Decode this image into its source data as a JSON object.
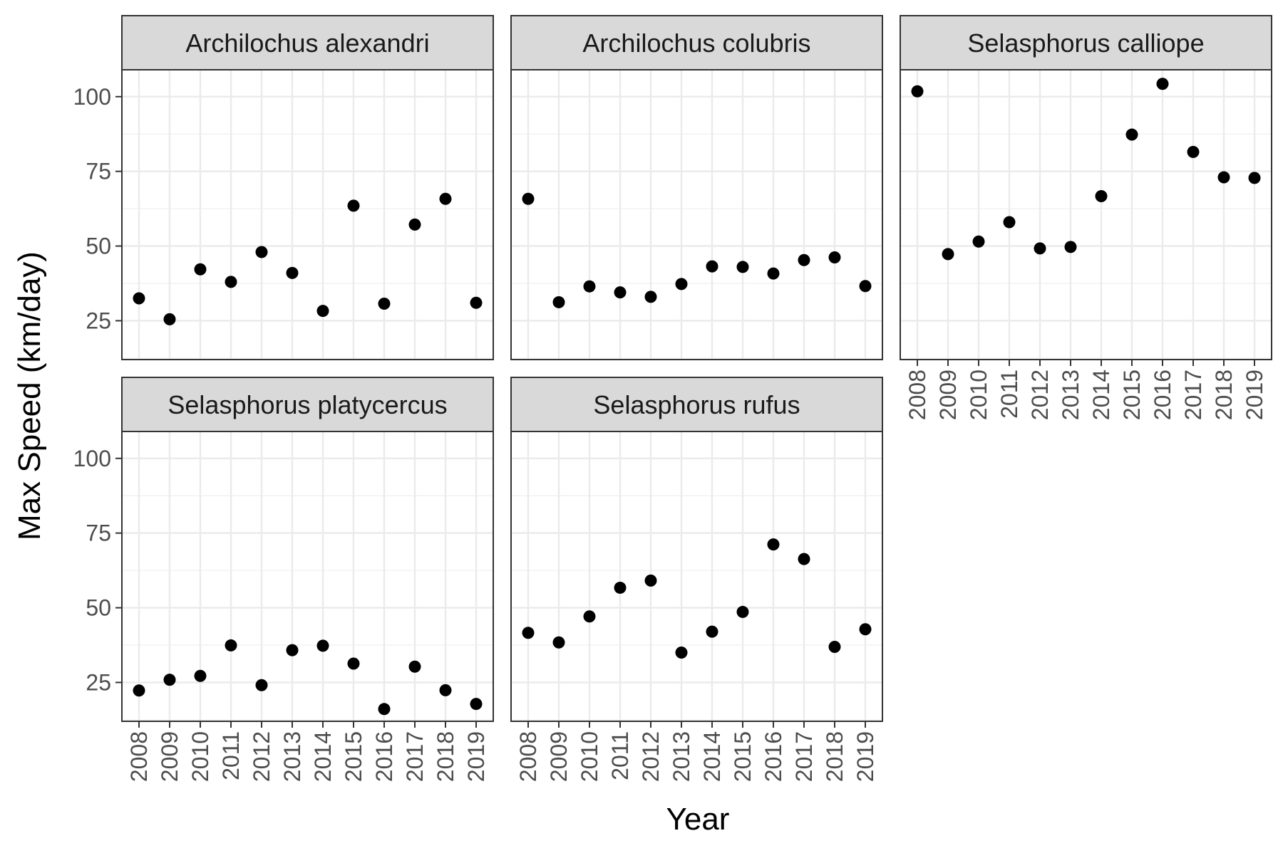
{
  "chart_data": {
    "type": "scatter",
    "facet_layout": "wrap",
    "xlabel": "Year",
    "ylabel": "Max Speed (km/day)",
    "x_categories": [
      "2008",
      "2009",
      "2010",
      "2011",
      "2012",
      "2013",
      "2014",
      "2015",
      "2016",
      "2017",
      "2018",
      "2019"
    ],
    "y_ticks": [
      25,
      50,
      75,
      100
    ],
    "ylim": [
      12,
      109
    ],
    "grid": true,
    "point_color": "#000000",
    "strip_fill": "#d9d9d9",
    "panels": [
      {
        "title": "Archilochus alexandri",
        "points": [
          {
            "x": "2008",
            "y": 32.5
          },
          {
            "x": "2009",
            "y": 25.5
          },
          {
            "x": "2010",
            "y": 42.2
          },
          {
            "x": "2011",
            "y": 38.0
          },
          {
            "x": "2012",
            "y": 48.0
          },
          {
            "x": "2013",
            "y": 41.0
          },
          {
            "x": "2014",
            "y": 28.3
          },
          {
            "x": "2015",
            "y": 63.5
          },
          {
            "x": "2016",
            "y": 30.7
          },
          {
            "x": "2017",
            "y": 57.2
          },
          {
            "x": "2018",
            "y": 65.8
          },
          {
            "x": "2019",
            "y": 31.0
          }
        ]
      },
      {
        "title": "Archilochus colubris",
        "points": [
          {
            "x": "2008",
            "y": 65.8
          },
          {
            "x": "2009",
            "y": 31.2
          },
          {
            "x": "2010",
            "y": 36.5
          },
          {
            "x": "2011",
            "y": 34.5
          },
          {
            "x": "2012",
            "y": 33.0
          },
          {
            "x": "2013",
            "y": 37.3
          },
          {
            "x": "2014",
            "y": 43.2
          },
          {
            "x": "2015",
            "y": 43.0
          },
          {
            "x": "2016",
            "y": 40.8
          },
          {
            "x": "2017",
            "y": 45.3
          },
          {
            "x": "2018",
            "y": 46.2
          },
          {
            "x": "2019",
            "y": 36.6
          }
        ]
      },
      {
        "title": "Selasphorus calliope",
        "points": [
          {
            "x": "2008",
            "y": 101.8
          },
          {
            "x": "2009",
            "y": 47.3
          },
          {
            "x": "2010",
            "y": 51.5
          },
          {
            "x": "2011",
            "y": 58.0
          },
          {
            "x": "2012",
            "y": 49.2
          },
          {
            "x": "2013",
            "y": 49.7
          },
          {
            "x": "2014",
            "y": 66.7
          },
          {
            "x": "2015",
            "y": 87.3
          },
          {
            "x": "2016",
            "y": 104.3
          },
          {
            "x": "2017",
            "y": 81.5
          },
          {
            "x": "2018",
            "y": 73.0
          },
          {
            "x": "2019",
            "y": 72.8
          }
        ]
      },
      {
        "title": "Selasphorus platycercus",
        "points": [
          {
            "x": "2008",
            "y": 22.3
          },
          {
            "x": "2009",
            "y": 25.9
          },
          {
            "x": "2010",
            "y": 27.2
          },
          {
            "x": "2011",
            "y": 37.4
          },
          {
            "x": "2012",
            "y": 24.1
          },
          {
            "x": "2013",
            "y": 35.8
          },
          {
            "x": "2014",
            "y": 37.3
          },
          {
            "x": "2015",
            "y": 31.3
          },
          {
            "x": "2016",
            "y": 16.1
          },
          {
            "x": "2017",
            "y": 30.3
          },
          {
            "x": "2018",
            "y": 22.4
          },
          {
            "x": "2019",
            "y": 17.8
          }
        ]
      },
      {
        "title": "Selasphorus rufus",
        "points": [
          {
            "x": "2008",
            "y": 41.6
          },
          {
            "x": "2009",
            "y": 38.4
          },
          {
            "x": "2010",
            "y": 47.1
          },
          {
            "x": "2011",
            "y": 56.7
          },
          {
            "x": "2012",
            "y": 59.1
          },
          {
            "x": "2013",
            "y": 35.0
          },
          {
            "x": "2014",
            "y": 42.0
          },
          {
            "x": "2015",
            "y": 48.6
          },
          {
            "x": "2016",
            "y": 71.2
          },
          {
            "x": "2017",
            "y": 66.3
          },
          {
            "x": "2018",
            "y": 36.9
          },
          {
            "x": "2019",
            "y": 42.8
          }
        ]
      }
    ]
  }
}
